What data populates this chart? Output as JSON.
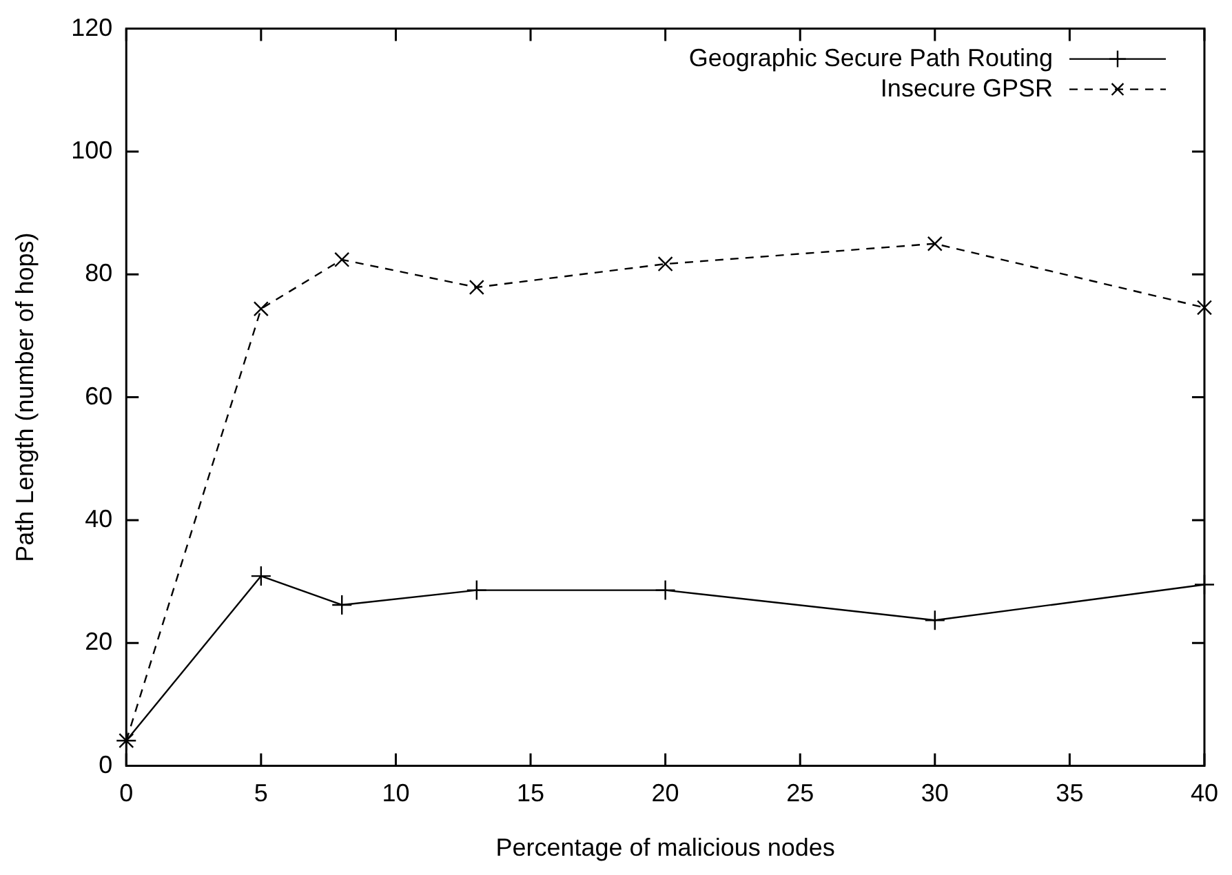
{
  "chart_data": {
    "type": "line",
    "xlabel": "Percentage of malicious nodes",
    "ylabel": "Path Length (number of hops)",
    "x": [
      0,
      5,
      8,
      13,
      20,
      30,
      40
    ],
    "series": [
      {
        "name": "Geographic Secure Path Routing",
        "color": "#000000",
        "values": [
          4.1,
          30.9,
          26.2,
          28.6,
          28.6,
          23.7,
          29.5
        ],
        "marker": "cross",
        "line_style": "solid"
      },
      {
        "name": "Insecure GPSR",
        "color": "#000000",
        "values": [
          4.1,
          74.4,
          82.4,
          77.9,
          81.7,
          85.0,
          74.6
        ],
        "marker": "cross",
        "line_style": "dashed"
      }
    ],
    "xlim": [
      0,
      40
    ],
    "xticks": [
      0,
      5,
      10,
      15,
      20,
      25,
      30,
      35,
      40
    ],
    "ylim": [
      0,
      120
    ],
    "yticks": [
      0,
      20,
      40,
      60,
      80,
      100,
      120
    ],
    "grid": false,
    "legend": "top right"
  }
}
